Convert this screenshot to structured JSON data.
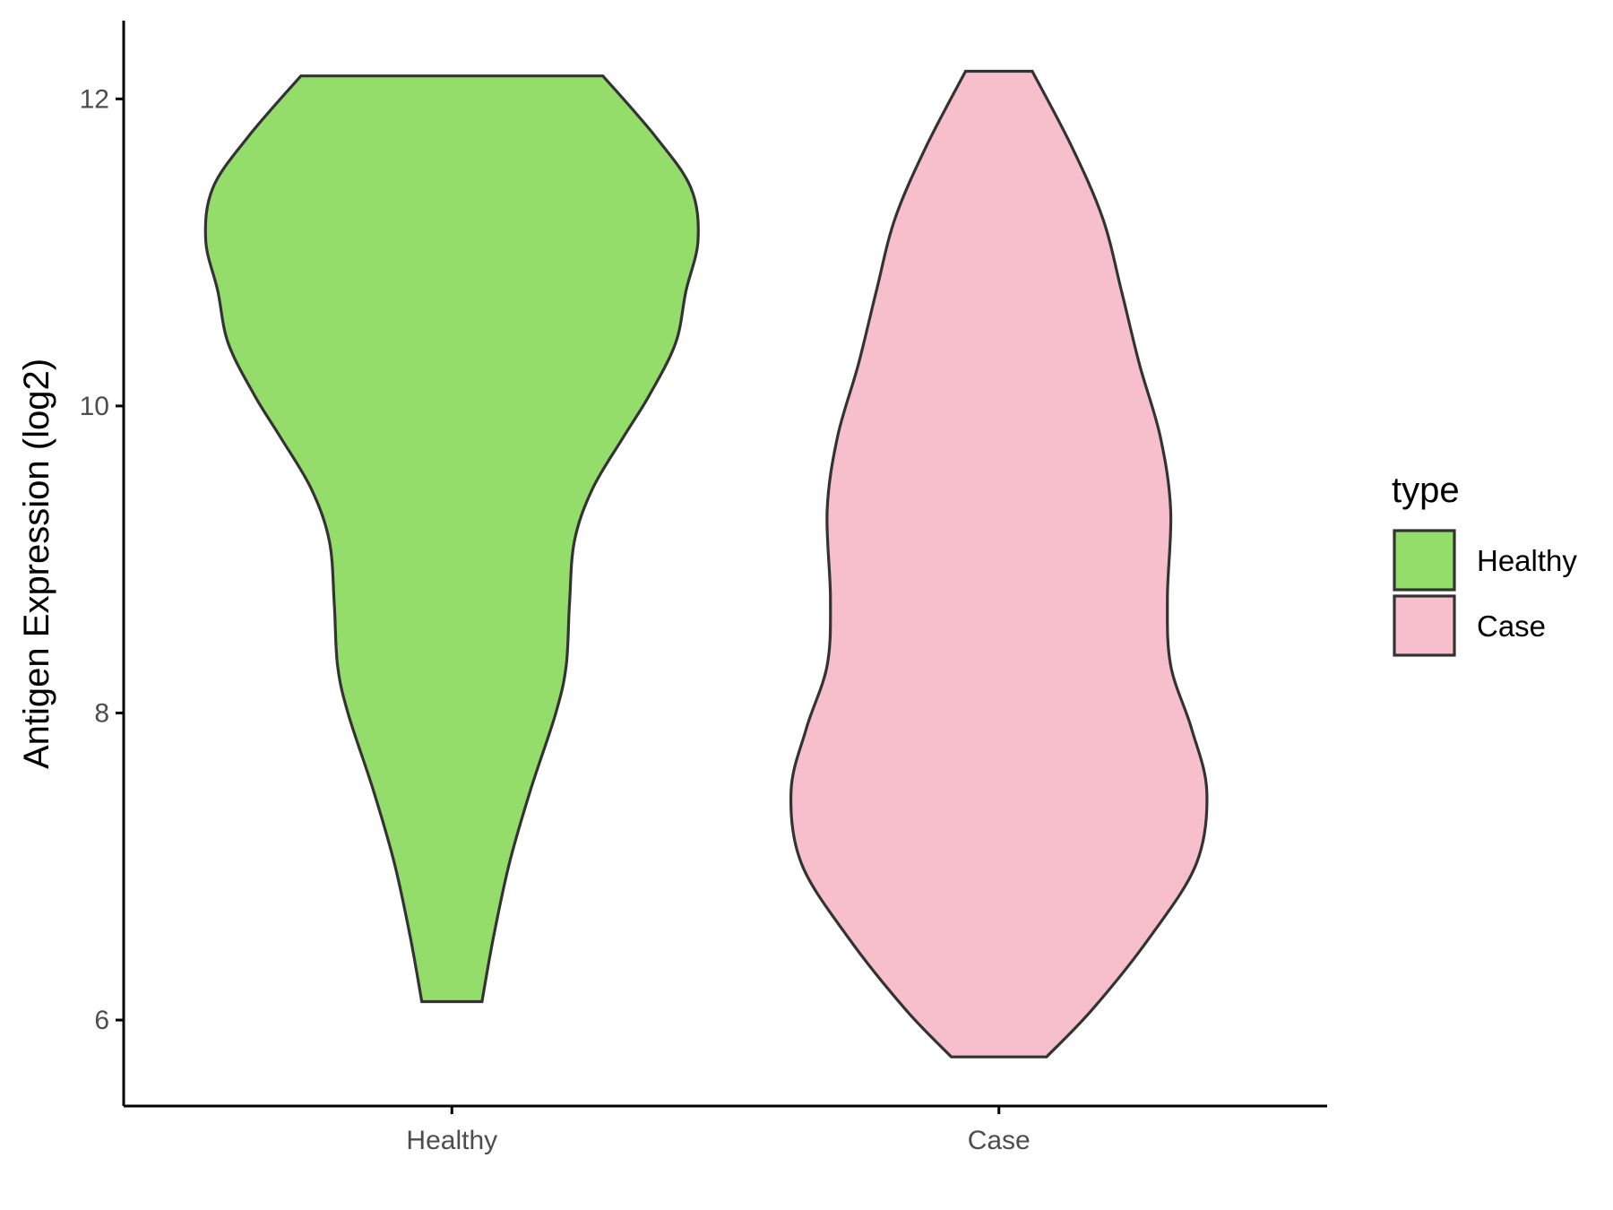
{
  "chart_data": {
    "type": "violin",
    "ylabel": "Antigen Expression (log2)",
    "categories": [
      "Healthy",
      "Case"
    ],
    "legend_title": "type",
    "legend": "right",
    "xlim": [
      0.4,
      2.6
    ],
    "ylim": [
      5.44,
      12.51
    ],
    "yticks": [
      6,
      8,
      10,
      12
    ],
    "series": [
      {
        "name": "Healthy",
        "color": "#95dd6b",
        "y": [
          6.12,
          6.54,
          7.02,
          7.49,
          8.0,
          8.31,
          8.71,
          9.12,
          9.46,
          9.8,
          10.07,
          10.41,
          10.75,
          11.08,
          11.42,
          11.76,
          12.15
        ],
        "width": [
          0.055,
          0.076,
          0.105,
          0.143,
          0.19,
          0.209,
          0.215,
          0.224,
          0.257,
          0.314,
          0.361,
          0.409,
          0.428,
          0.45,
          0.437,
          0.371,
          0.276
        ]
      },
      {
        "name": "Case",
        "color": "#f7bfcb",
        "y": [
          5.76,
          6.07,
          6.54,
          7.02,
          7.49,
          7.9,
          8.31,
          8.75,
          9.32,
          9.8,
          10.27,
          10.75,
          11.22,
          11.69,
          12.18
        ],
        "width": [
          0.087,
          0.171,
          0.276,
          0.361,
          0.38,
          0.352,
          0.314,
          0.308,
          0.314,
          0.295,
          0.257,
          0.224,
          0.19,
          0.133,
          0.061
        ]
      }
    ]
  }
}
